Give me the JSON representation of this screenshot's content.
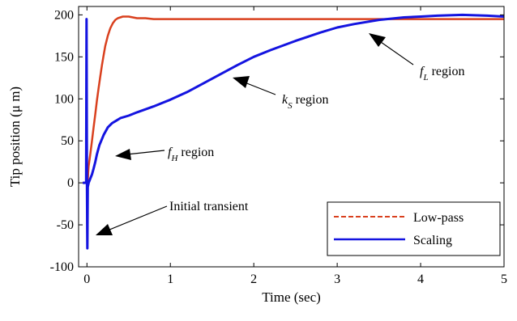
{
  "chart_data": {
    "type": "line",
    "xlabel": "Time (sec)",
    "ylabel": "Tip position (μ m)",
    "xlim": [
      -0.1,
      5
    ],
    "ylim": [
      -100,
      210
    ],
    "xticks": [
      0,
      1,
      2,
      3,
      4,
      5
    ],
    "yticks": [
      -100,
      -50,
      0,
      50,
      100,
      150,
      200
    ],
    "grid": false,
    "legend_position": "bottom-right",
    "series": [
      {
        "name": "Low-pass",
        "color": "#d9401e",
        "style": "dashed",
        "x": [
          -0.05,
          0.0,
          0.005,
          0.01,
          0.015,
          0.02,
          0.04,
          0.06,
          0.08,
          0.1,
          0.12,
          0.14,
          0.16,
          0.18,
          0.2,
          0.22,
          0.25,
          0.28,
          0.31,
          0.34,
          0.37,
          0.4,
          0.43,
          0.46,
          0.5,
          0.55,
          0.6,
          0.7,
          0.8,
          1.0,
          1.5,
          2.0,
          2.5,
          3.0,
          3.5,
          4.0,
          4.5,
          5.0
        ],
        "y": [
          0,
          0,
          -78,
          0,
          12,
          20,
          34,
          50,
          66,
          82,
          98,
          113,
          127,
          140,
          152,
          163,
          175,
          184,
          190,
          194,
          196,
          197,
          198,
          198,
          198,
          197,
          196,
          196,
          195,
          195,
          195,
          195,
          195,
          195,
          195,
          195,
          195,
          195
        ]
      },
      {
        "name": "Scaling",
        "color": "#1414e0",
        "style": "solid",
        "x": [
          -0.05,
          -0.02,
          -0.01,
          -0.005,
          0.0,
          0.005,
          0.01,
          0.02,
          0.04,
          0.06,
          0.08,
          0.1,
          0.12,
          0.15,
          0.2,
          0.25,
          0.3,
          0.35,
          0.4,
          0.5,
          0.6,
          0.8,
          1.0,
          1.2,
          1.5,
          1.8,
          2.0,
          2.2,
          2.5,
          2.8,
          3.0,
          3.2,
          3.5,
          3.8,
          4.0,
          4.2,
          4.5,
          4.8,
          5.0
        ],
        "y": [
          0,
          0,
          1,
          195,
          0,
          -78,
          -5,
          0,
          5,
          10,
          17,
          25,
          34,
          45,
          57,
          66,
          71,
          74,
          77,
          80,
          84,
          91,
          99,
          108,
          124,
          140,
          150,
          158,
          169,
          179,
          185,
          189,
          194,
          197,
          198,
          199,
          200,
          199,
          198
        ]
      }
    ],
    "annotations": [
      {
        "base": "f",
        "sub": "L",
        "suffix": " region"
      },
      {
        "base": "k",
        "sub": "S",
        "suffix": " region"
      },
      {
        "base": "f",
        "sub": "H",
        "suffix": " region"
      },
      {
        "base": "Initial transient",
        "sub": "",
        "suffix": ""
      }
    ]
  }
}
